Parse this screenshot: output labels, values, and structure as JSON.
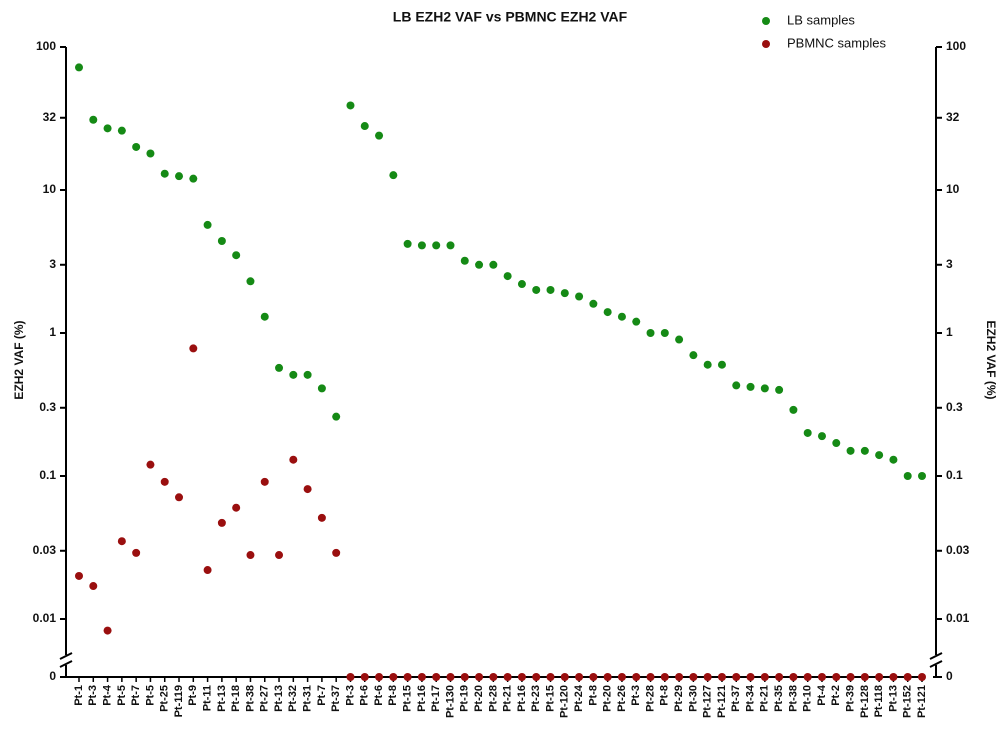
{
  "chart_data": {
    "type": "scatter",
    "title": "LB EZH2 VAF vs PBMNC EZH2 VAF",
    "ylabel": "EZH2 VAF (%)",
    "y2label": "EZH2 VAF (%)",
    "log_scale": true,
    "legend": "upper right",
    "categories": [
      "Pt-1",
      "Pt-3",
      "Pt-4",
      "Pt-5",
      "Pt-7",
      "Pt-5",
      "Pt-25",
      "Pt-119",
      "Pt-9",
      "Pt-11",
      "Pt-13",
      "Pt-18",
      "Pt-38",
      "Pt-27",
      "Pt-13",
      "Pt-32",
      "Pt-31",
      "Pt-7",
      "Pt-37",
      "Pt-3",
      "Pt-6",
      "Pt-6",
      "Pt-8",
      "Pt-15",
      "Pt-16",
      "Pt-17",
      "Pt-130",
      "Pt-19",
      "Pt-20",
      "Pt-28",
      "Pt-21",
      "Pt-16",
      "Pt-23",
      "Pt-15",
      "Pt-120",
      "Pt-24",
      "Pt-8",
      "Pt-20",
      "Pt-26",
      "Pt-3",
      "Pt-28",
      "Pt-8",
      "Pt-29",
      "Pt-30",
      "Pt-127",
      "Pt-121",
      "Pt-37",
      "Pt-34",
      "Pt-21",
      "Pt-35",
      "Pt-38",
      "Pt-10",
      "Pt-4",
      "Pt-2",
      "Pt-39",
      "Pt-128",
      "Pt-118",
      "Pt-13",
      "Pt-152",
      "Pt-121"
    ],
    "series": [
      {
        "name": "LB samples",
        "color": "#158a15",
        "values": [
          72,
          31,
          27,
          26,
          20,
          18,
          13,
          12.5,
          12,
          5.7,
          4.4,
          3.5,
          2.3,
          1.3,
          0.57,
          0.51,
          0.51,
          0.41,
          0.26,
          39,
          28,
          24,
          12.7,
          4.2,
          4.1,
          4.1,
          4.1,
          3.2,
          3.0,
          3.0,
          2.5,
          2.2,
          2.0,
          2.0,
          1.9,
          1.8,
          1.6,
          1.4,
          1.3,
          1.2,
          1.0,
          1.0,
          0.9,
          0.7,
          0.6,
          0.6,
          0.43,
          0.42,
          0.41,
          0.4,
          0.29,
          0.2,
          0.19,
          0.17,
          0.15,
          0.15,
          0.14,
          0.13,
          0.1,
          0.1
        ]
      },
      {
        "name": "PBMNC samples",
        "color": "#9a0f0f",
        "values": [
          0.02,
          0.017,
          0.0083,
          0.035,
          0.029,
          0.12,
          0.091,
          0.071,
          0.78,
          0.022,
          0.047,
          0.06,
          0.028,
          0.091,
          0.028,
          0.13,
          0.081,
          0.051,
          0.029,
          0,
          0,
          0,
          0,
          0,
          0,
          0,
          0,
          0,
          0,
          0,
          0,
          0,
          0,
          0,
          0,
          0,
          0,
          0,
          0,
          0,
          0,
          0,
          0,
          0,
          0,
          0,
          0,
          0,
          0,
          0,
          0,
          0,
          0,
          0,
          0,
          0,
          0,
          0,
          0,
          0
        ]
      }
    ],
    "ylim": [
      0,
      100
    ],
    "yticks": [
      100,
      32,
      10,
      3,
      1,
      0.3,
      0.1,
      0.03,
      0.01,
      0
    ],
    "y2lim": [
      0,
      100
    ],
    "y2ticks": [
      100,
      32,
      10,
      3,
      1,
      0.3,
      0.1,
      0.03,
      0.01,
      0
    ]
  }
}
